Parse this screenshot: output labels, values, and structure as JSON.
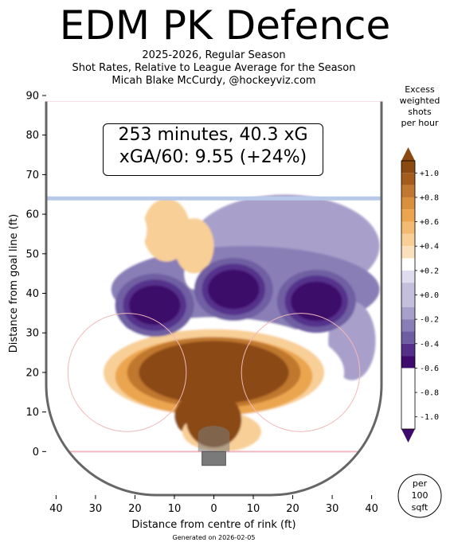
{
  "title": "EDM PK Defence",
  "subtitle_lines": [
    "2025-2026, Regular Season",
    "Shot Rates, Relative to League Average for the Season",
    "Micah Blake McCurdy, @hockeyviz.com"
  ],
  "annotation": {
    "line1": "253 minutes, 40.3 xG",
    "line2": "xGA/60: 9.55 (+24%)"
  },
  "footer": "Generated on 2026-02-05",
  "chart_data": {
    "type": "heatmap",
    "xlabel": "Distance from centre of rink (ft)",
    "ylabel": "Distance from goal line (ft)",
    "xlim": [
      -42.5,
      42.5
    ],
    "ylim": [
      -11,
      90
    ],
    "x_ticks": [
      -40,
      -30,
      -20,
      -10,
      0,
      10,
      20,
      30,
      40
    ],
    "x_tick_labels": [
      "40",
      "30",
      "20",
      "10",
      "0",
      "10",
      "20",
      "30",
      "40"
    ],
    "y_ticks": [
      0,
      10,
      20,
      30,
      40,
      50,
      60,
      70,
      80,
      90
    ],
    "colorbar": {
      "title_lines": [
        "Excess",
        "weighted",
        "shots",
        "per hour"
      ],
      "unit_label_lines": [
        "per",
        "100",
        "sqft"
      ],
      "ticks": [
        1.0,
        0.8,
        0.6,
        0.4,
        0.2,
        0.0,
        -0.2,
        -0.4,
        -0.6,
        -0.8,
        -1.0
      ],
      "tick_labels": [
        "+1.0",
        "+0.8",
        "+0.6",
        "+0.4",
        "+0.2",
        "+0.0",
        "-0.2",
        "-0.4",
        "-0.6",
        "-0.8",
        "-1.0"
      ],
      "levels": [
        1.1,
        1.0,
        0.9,
        0.8,
        0.7,
        0.6,
        0.5,
        0.4,
        0.3,
        0.2,
        0.1,
        -0.1,
        -0.2,
        -0.3,
        -0.4,
        -0.5,
        -0.6,
        -0.7,
        -0.8,
        -0.9,
        -1.0,
        -1.1
      ],
      "colors": [
        "#8b4a12",
        "#a45c1c",
        "#c0772f",
        "#d8903d",
        "#eba54f",
        "#f3bb72",
        "#f8cf96",
        "#fbe0bd",
        "#ffffff",
        "#dedcee",
        "#c3bfdc",
        "#a8a0cb",
        "#8a7eb7",
        "#6f5ea2",
        "#54308b",
        "#3e0a6b"
      ]
    },
    "rink": {
      "goal_line_y": 0,
      "blue_line_y": 64,
      "red_line_y": 89,
      "faceoff_circle_centres": [
        [
          -22,
          20
        ],
        [
          22,
          20
        ]
      ],
      "faceoff_circle_radius": 15
    },
    "hot_regions": [
      {
        "name": "slot",
        "x": 0,
        "y": 20,
        "value": 1.1
      },
      {
        "name": "low-slot",
        "x": 0,
        "y": 8,
        "value": 1.1
      },
      {
        "name": "right-point-lane",
        "x": -5,
        "y": 52,
        "value": 0.4
      }
    ],
    "cold_regions": [
      {
        "name": "left-high",
        "x": -15,
        "y": 37,
        "value": -1.0
      },
      {
        "name": "centre-high",
        "x": 5,
        "y": 41,
        "value": -1.0
      },
      {
        "name": "right-high",
        "x": 26,
        "y": 38,
        "value": -1.1
      }
    ]
  }
}
